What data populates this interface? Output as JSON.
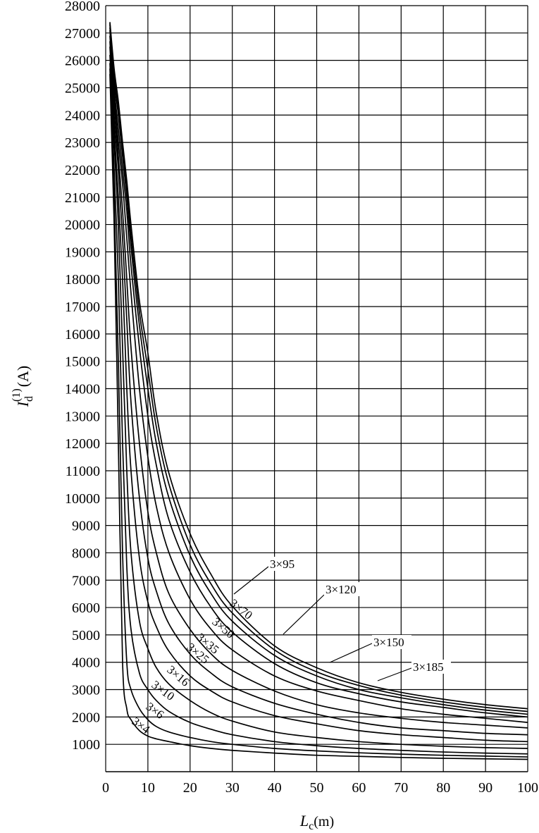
{
  "chart_data": {
    "type": "line",
    "title": "",
    "xlabel": "L",
    "xlabel_sub": "c",
    "xlabel_unit": "(m)",
    "ylabel": "I",
    "ylabel_sup": "(1)",
    "ylabel_sub": "d",
    "ylabel_unit": "(A)",
    "xlim": [
      0,
      100
    ],
    "ylim": [
      0,
      28000
    ],
    "grid": true,
    "x_ticks": [
      0,
      10,
      20,
      30,
      40,
      50,
      60,
      70,
      80,
      90,
      100
    ],
    "y_ticks": [
      1000,
      2000,
      3000,
      4000,
      5000,
      6000,
      7000,
      8000,
      9000,
      10000,
      11000,
      12000,
      13000,
      14000,
      15000,
      16000,
      17000,
      18000,
      19000,
      20000,
      21000,
      22000,
      23000,
      24000,
      25000,
      26000,
      27000,
      28000
    ],
    "x": [
      1,
      2,
      3,
      4,
      5,
      6,
      8,
      10,
      12,
      15,
      20,
      25,
      30,
      40,
      50,
      60,
      70,
      80,
      90,
      100
    ],
    "series": [
      {
        "name": "3×4",
        "values": [
          25500,
          20000,
          12000,
          4000,
          2300,
          1900,
          1500,
          1300,
          1200,
          1100,
          950,
          850,
          780,
          680,
          600,
          560,
          520,
          490,
          470,
          450
        ]
      },
      {
        "name": "3×6",
        "values": [
          25700,
          21000,
          15000,
          8000,
          4000,
          3000,
          2300,
          1900,
          1650,
          1450,
          1250,
          1100,
          1000,
          850,
          760,
          690,
          640,
          600,
          570,
          540
        ]
      },
      {
        "name": "3×10",
        "values": [
          25900,
          22000,
          18000,
          12000,
          7500,
          5200,
          3600,
          3000,
          2600,
          2200,
          1800,
          1550,
          1350,
          1100,
          950,
          850,
          780,
          720,
          680,
          650
        ]
      },
      {
        "name": "3×16",
        "values": [
          26200,
          23000,
          20000,
          15500,
          11000,
          8000,
          5500,
          4500,
          3800,
          3200,
          2600,
          2150,
          1850,
          1450,
          1250,
          1100,
          1000,
          930,
          880,
          850
        ]
      },
      {
        "name": "3×25",
        "values": [
          26500,
          23500,
          21000,
          18000,
          14000,
          11000,
          7800,
          6200,
          5300,
          4400,
          3500,
          2950,
          2550,
          2050,
          1750,
          1500,
          1350,
          1250,
          1150,
          1100
        ]
      },
      {
        "name": "3×35",
        "values": [
          26700,
          24000,
          22000,
          19500,
          16500,
          13500,
          10000,
          7800,
          6600,
          5400,
          4300,
          3600,
          3100,
          2500,
          2100,
          1800,
          1600,
          1500,
          1400,
          1350
        ]
      },
      {
        "name": "3×50",
        "values": [
          26900,
          24500,
          22500,
          20500,
          18000,
          15500,
          12000,
          9500,
          8000,
          6500,
          5200,
          4300,
          3700,
          2950,
          2450,
          2150,
          1950,
          1800,
          1700,
          1600
        ]
      },
      {
        "name": "3×70",
        "values": [
          27100,
          24800,
          23000,
          21500,
          19500,
          17500,
          14000,
          11500,
          9700,
          8000,
          6300,
          5200,
          4450,
          3500,
          2950,
          2600,
          2300,
          2100,
          1950,
          1800
        ]
      },
      {
        "name": "3×95",
        "values": [
          27200,
          25000,
          23500,
          22000,
          20500,
          18500,
          15500,
          13000,
          11200,
          9200,
          7300,
          6000,
          5100,
          3950,
          3250,
          2850,
          2550,
          2350,
          2150,
          2000
        ]
      },
      {
        "name": "3×120",
        "values": [
          27300,
          25300,
          24000,
          22500,
          21000,
          19200,
          16300,
          14000,
          12000,
          10000,
          7900,
          6500,
          5500,
          4250,
          3500,
          3000,
          2700,
          2450,
          2250,
          2100
        ]
      },
      {
        "name": "3×150",
        "values": [
          27350,
          25500,
          24200,
          22800,
          21300,
          19600,
          16800,
          14700,
          12600,
          10500,
          8300,
          6850,
          5800,
          4450,
          3650,
          3150,
          2800,
          2550,
          2350,
          2200
        ]
      },
      {
        "name": "3×185",
        "values": [
          27400,
          25700,
          24500,
          23000,
          21600,
          20000,
          17200,
          15300,
          13100,
          10900,
          8700,
          7200,
          6050,
          4600,
          3800,
          3250,
          2900,
          2650,
          2450,
          2300
        ]
      }
    ],
    "curve_labels": [
      {
        "series": "3×4",
        "text": "3×4"
      },
      {
        "series": "3×6",
        "text": "3×6"
      },
      {
        "series": "3×10",
        "text": "3×10"
      },
      {
        "series": "3×16",
        "text": "3×16"
      },
      {
        "series": "3×25",
        "text": "3×25"
      },
      {
        "series": "3×35",
        "text": "3×35"
      },
      {
        "series": "3×50",
        "text": "3×50"
      },
      {
        "series": "3×70",
        "text": "3×70"
      },
      {
        "series": "3×95",
        "text": "3×95"
      },
      {
        "series": "3×120",
        "text": "3×120"
      },
      {
        "series": "3×150",
        "text": "3×150"
      },
      {
        "series": "3×185",
        "text": "3×185"
      }
    ],
    "line_color": "#000000",
    "grid_color": "#000000",
    "background": "#ffffff"
  }
}
